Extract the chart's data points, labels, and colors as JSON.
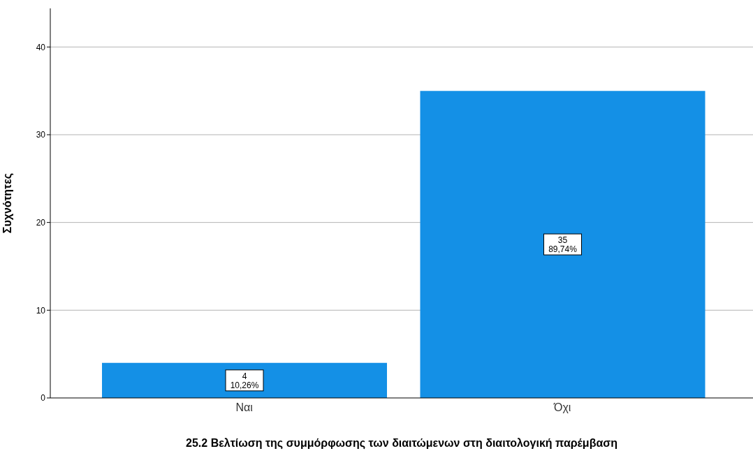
{
  "chart_data": {
    "type": "bar",
    "xlabel": "25.2 Βελτίωση της συμμόρφωσης των διαιτώμενων στη διαιτολογική παρέμβαση",
    "ylabel": "Συχνότητες",
    "categories": [
      "Ναι",
      "Όχι"
    ],
    "values": [
      4,
      35
    ],
    "color": "#1490e6",
    "value_labels": [
      "4\n10,26%",
      "35\n89,74%"
    ],
    "ylim": [
      0,
      44.4
    ],
    "yticks": [
      0,
      10,
      20,
      30,
      40
    ],
    "grid": "y"
  }
}
